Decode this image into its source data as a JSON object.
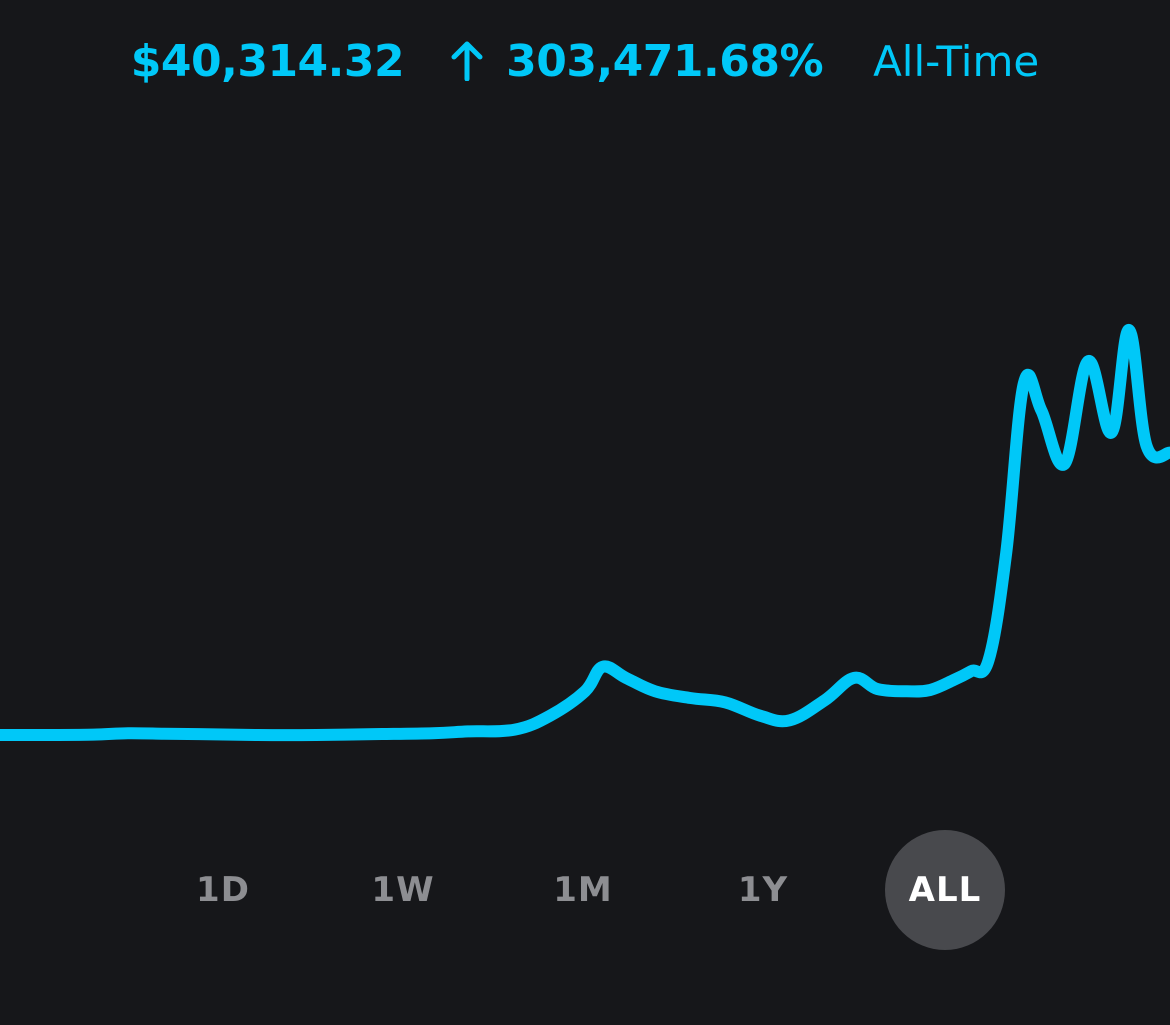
{
  "header": {
    "price": "$40,314.32",
    "change_percent": "303,471.68%",
    "change_direction_icon": "arrow-up-icon",
    "period_label": "All-Time"
  },
  "colors": {
    "accent": "#00c8f8",
    "background": "#16171a",
    "inactive_text": "#8d8e92",
    "active_pill": "#48494d"
  },
  "range_selector": {
    "options": [
      "1D",
      "1W",
      "1M",
      "1Y",
      "ALL"
    ],
    "selected": "ALL"
  },
  "chart_data": {
    "type": "line",
    "x": [
      0,
      4,
      8,
      11,
      14,
      17,
      22,
      27,
      32,
      37,
      40,
      44,
      47,
      50,
      51.5,
      53.5,
      56,
      59,
      62,
      65,
      67.5,
      70.5,
      73,
      75,
      77.5,
      79.5,
      81.5,
      83,
      84.5,
      86,
      87.5,
      89,
      91,
      93,
      95,
      96.5,
      98,
      100
    ],
    "values": [
      1.2,
      1.2,
      1.3,
      1.6,
      1.5,
      1.4,
      1.2,
      1.2,
      1.4,
      1.6,
      2.0,
      2.4,
      5.5,
      11.0,
      16.5,
      14.0,
      11.0,
      9.5,
      8.5,
      5.5,
      4.5,
      9.0,
      14.0,
      11.5,
      11.0,
      11.3,
      13.5,
      15.5,
      18.0,
      42.0,
      80.0,
      74.0,
      62.0,
      85.0,
      69.0,
      92.0,
      66.0,
      64.5
    ]
  }
}
